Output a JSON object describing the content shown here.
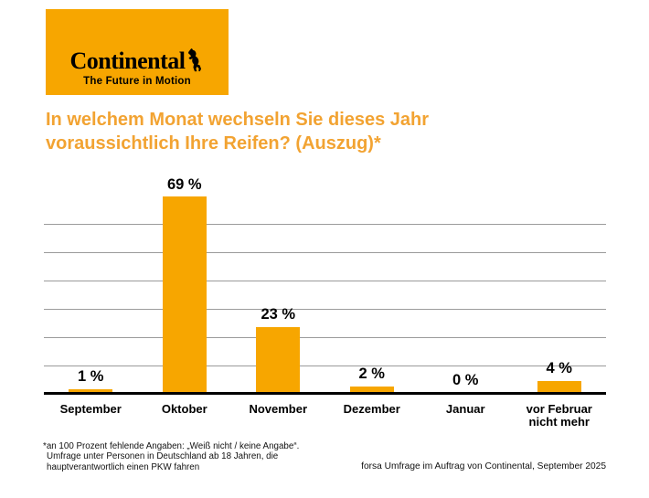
{
  "logo": {
    "brand": "Continental",
    "tagline": "The Future in Motion",
    "horse_icon": "rearing-horse"
  },
  "title": "In welchem Monat wechseln Sie dieses Jahr voraussichtlich Ihre Reifen? (Auszug)*",
  "chart_data": {
    "type": "bar",
    "title": "In welchem Monat wechseln Sie dieses Jahr voraussichtlich Ihre Reifen? (Auszug)*",
    "categories": [
      "September",
      "Oktober",
      "November",
      "Dezember",
      "Januar",
      "vor Februar nicht mehr"
    ],
    "values": [
      1,
      69,
      23,
      2,
      0,
      4
    ],
    "value_labels": [
      "1 %",
      "69 %",
      "23 %",
      "2 %",
      "0 %",
      "4 %"
    ],
    "xlabel": "",
    "ylabel": "",
    "ylim": [
      0,
      70
    ],
    "gridlines_pct": [
      10,
      20,
      30,
      40,
      50,
      60
    ],
    "yticks_visible": false,
    "grid": "horizontal",
    "legend": "none",
    "bar_color": "#F7A600"
  },
  "footnote": {
    "lines": [
      "*an 100 Prozent fehlende Angaben: „Weiß nicht / keine Angabe“.",
      "Umfrage unter Personen in Deutschland ab 18 Jahren, die",
      "hauptverantwortlich einen PKW fahren"
    ]
  },
  "source": "forsa Umfrage im Auftrag von Continental, September 2025",
  "colors": {
    "brand_orange": "#F7A600",
    "title_orange": "#F2A332",
    "gridline_gray": "#9B9B9B",
    "text_black": "#000000",
    "background": "#FFFFFF"
  }
}
